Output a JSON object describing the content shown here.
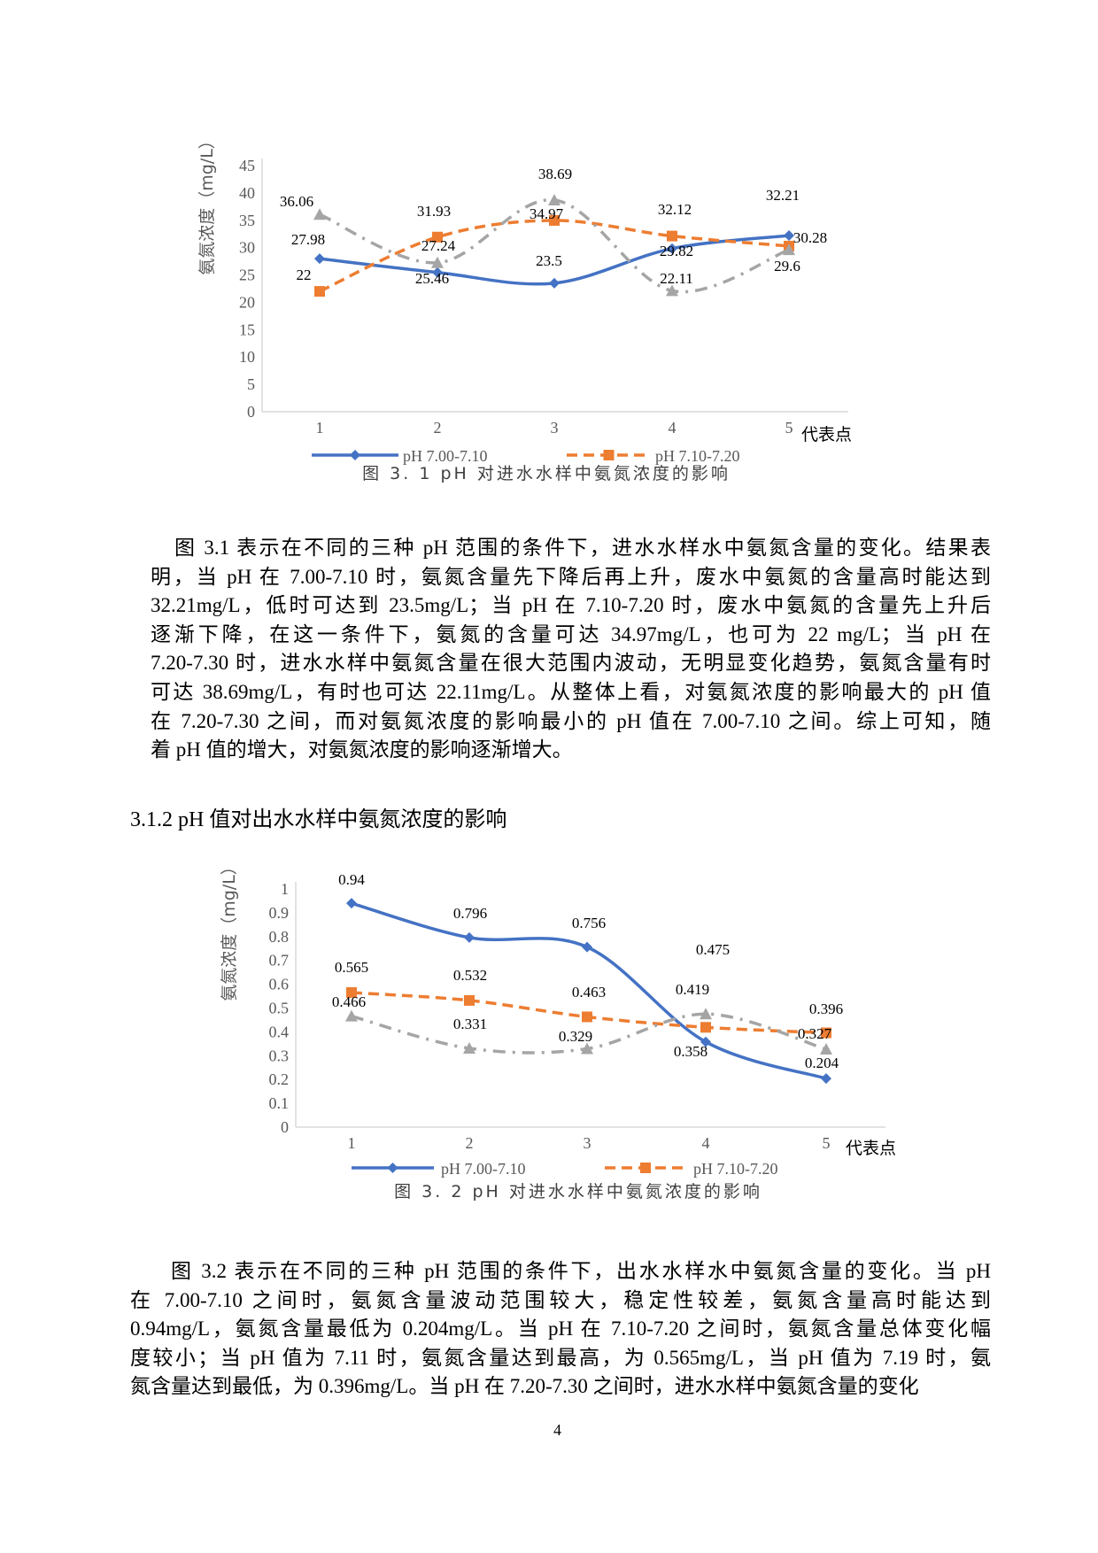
{
  "figures": [
    {
      "caption": "图 3. 1  pH 对进水水样中氨氮浓度的影响",
      "chart_data": {
        "type": "line",
        "title": "",
        "xlabel": "代表点",
        "ylabel": "氨氮浓度（mg/L）",
        "categories": [
          "1",
          "2",
          "3",
          "4",
          "5"
        ],
        "ylim": [
          0,
          45
        ],
        "yticks": [
          "0",
          "5",
          "10",
          "15",
          "20",
          "25",
          "30",
          "35",
          "40",
          "45"
        ],
        "ytick_values": [
          0,
          5,
          10,
          15,
          20,
          25,
          30,
          35,
          40,
          45
        ],
        "grid": false,
        "legend_position": "bottom",
        "series": [
          {
            "name": "pH 7.00-7.10",
            "values": [
              27.98,
              25.46,
              23.5,
              29.82,
              32.21
            ],
            "color": "#4472C4",
            "marker": "diamond",
            "style": "solid"
          },
          {
            "name": "pH 7.10-7.20",
            "values": [
              22,
              31.93,
              34.97,
              32.12,
              30.28
            ],
            "color": "#ED7D31",
            "marker": "square",
            "style": "dashed"
          },
          {
            "values": [
              36.06,
              27.24,
              38.69,
              22.11,
              29.6
            ],
            "color": "#A5A5A5",
            "marker": "triangle",
            "style": "dash-dot"
          }
        ]
      }
    },
    {
      "caption": "图 3. 2  pH 对进水水样中氨氮浓度的影响",
      "chart_data": {
        "type": "line",
        "title": "",
        "xlabel": "代表点",
        "ylabel": "氨氮浓度（mg/L）",
        "categories": [
          "1",
          "2",
          "3",
          "4",
          "5"
        ],
        "ylim": [
          0,
          1
        ],
        "yticks": [
          "0",
          "0.1",
          "0.2",
          "0.3",
          "0.4",
          "0.5",
          "0.6",
          "0.7",
          "0.8",
          "0.9",
          "1"
        ],
        "ytick_values": [
          0,
          0.1,
          0.2,
          0.3,
          0.4,
          0.5,
          0.6,
          0.7,
          0.8,
          0.9,
          1
        ],
        "grid": false,
        "legend_position": "bottom",
        "series": [
          {
            "name": "pH 7.00-7.10",
            "values": [
              0.94,
              0.796,
              0.756,
              0.358,
              0.204
            ],
            "color": "#4472C4",
            "marker": "diamond",
            "style": "solid"
          },
          {
            "name": "pH 7.10-7.20",
            "values": [
              0.565,
              0.532,
              0.463,
              0.419,
              0.396
            ],
            "color": "#ED7D31",
            "marker": "square",
            "style": "dashed"
          },
          {
            "values": [
              0.466,
              0.331,
              0.329,
              0.475,
              0.327
            ],
            "color": "#A5A5A5",
            "marker": "triangle",
            "style": "dash-dot"
          }
        ]
      }
    }
  ],
  "paragraph1": [
    "图 3.1 表示在不同的三种 pH 范围的条件下，进水水样水中氨氮含量的变化。结果表",
    "明，当 pH 在 7.00-7.10 时，氨氮含量先下降后再上升，废水中氨氮的含量高时能达到",
    "32.21mg/L，低时可达到 23.5mg/L；当 pH 在 7.10-7.20 时，废水中氨氮的含量先上升后",
    "逐渐下降，在这一条件下，氨氮的含量可达 34.97mg/L，也可为 22 mg/L；当  pH 在",
    "7.20-7.30 时，进水水样中氨氮含量在很大范围内波动，无明显变化趋势，氨氮含量有时",
    "可达 38.69mg/L，有时也可达 22.11mg/L。从整体上看，对氨氮浓度的影响最大的 pH 值",
    "在 7.20-7.30 之间，而对氨氮浓度的影响最小的 pH 值在 7.00-7.10 之间。综上可知，随",
    "着 pH 值的增大，对氨氮浓度的影响逐渐增大。"
  ],
  "heading": "3.1.2 pH 值对出水水样中氨氮浓度的影响",
  "paragraph2": [
    "图 3.2 表示在不同的三种  pH 范围的条件下，出水水样水中氨氮含量的变化。当  pH",
    "在 7.00-7.10 之间时，氨氮含量波动范围较大，稳定性较差，氨氮含量高时能达到",
    "0.94mg/L，氨氮含量最低为 0.204mg/L。当  pH 在 7.10-7.20 之间时，氨氮含量总体变化幅",
    "度较小；当  pH 值为 7.11 时，氨氮含量达到最高，为 0.565mg/L，当  pH 值为 7.19 时，氨",
    "氮含量达到最低，为 0.396mg/L。当  pH 在 7.20-7.30 之间时，进水水样中氨氮含量的变化"
  ],
  "page_number": "4"
}
